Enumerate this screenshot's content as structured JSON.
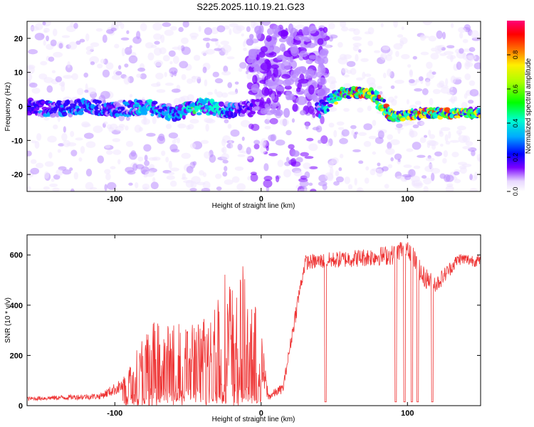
{
  "figure": {
    "title": "S225.2025.110.19.21.G23"
  },
  "chart_data": [
    {
      "type": "heatmap",
      "xlabel": "Height of straight line (km)",
      "ylabel": "Frequency (Hz)",
      "xlim": [
        -160,
        150
      ],
      "ylim": [
        -25,
        25
      ],
      "xticks": [
        -100,
        0,
        100
      ],
      "yticks": [
        -20,
        -10,
        0,
        10,
        20
      ],
      "xtick_labels": [
        "-100",
        "0",
        "100"
      ],
      "ytick_labels": [
        "-20",
        "-10",
        "0",
        "10",
        "20"
      ],
      "colorbar": {
        "label": "Normalized spectral amplitude",
        "range": [
          0,
          1
        ],
        "ticks": [
          0.0,
          0.2,
          0.4,
          0.6,
          0.8
        ],
        "tick_labels": [
          "0.0",
          "0.2",
          "0.4",
          "0.6",
          "0.8"
        ],
        "colormap": "rainbow"
      },
      "ridge": [
        {
          "x": -160,
          "y": 0,
          "a": 0.45
        },
        {
          "x": -140,
          "y": -1,
          "a": 0.5
        },
        {
          "x": -120,
          "y": 0,
          "a": 0.55
        },
        {
          "x": -100,
          "y": -1,
          "a": 0.5
        },
        {
          "x": -80,
          "y": 0,
          "a": 0.6
        },
        {
          "x": -60,
          "y": -2,
          "a": 0.55
        },
        {
          "x": -50,
          "y": -1,
          "a": 0.65
        },
        {
          "x": -40,
          "y": 0,
          "a": 0.65
        },
        {
          "x": -25,
          "y": -1,
          "a": 0.6
        },
        {
          "x": -15,
          "y": -1,
          "a": 0.45
        },
        {
          "x": 0,
          "y": 0,
          "a": 0.3
        },
        {
          "x": 40,
          "y": -1,
          "a": 0.5
        },
        {
          "x": 55,
          "y": 4,
          "a": 0.85
        },
        {
          "x": 75,
          "y": 4,
          "a": 0.85
        },
        {
          "x": 90,
          "y": -3,
          "a": 0.8
        },
        {
          "x": 110,
          "y": -2,
          "a": 0.85
        },
        {
          "x": 130,
          "y": -2,
          "a": 0.85
        },
        {
          "x": 148,
          "y": -2,
          "a": 0.8
        }
      ],
      "grid": false
    },
    {
      "type": "line",
      "xlabel": "Height of straight line (km)",
      "ylabel": "SNR (10 * v/v)",
      "xlim": [
        -160,
        150
      ],
      "ylim": [
        0,
        680
      ],
      "xticks": [
        -100,
        0,
        100
      ],
      "yticks": [
        0,
        200,
        400,
        600
      ],
      "xtick_labels": [
        "-100",
        "0",
        "100"
      ],
      "ytick_labels": [
        "0",
        "200",
        "400",
        "600"
      ],
      "color": "#ee3333",
      "envelope": [
        {
          "x": -160,
          "base": 20,
          "peak": 35
        },
        {
          "x": -110,
          "base": 25,
          "peak": 50
        },
        {
          "x": -95,
          "base": 50,
          "peak": 110
        },
        {
          "x": -85,
          "base": 90,
          "peak": 250
        },
        {
          "x": -75,
          "base": 120,
          "peak": 340
        },
        {
          "x": -60,
          "base": 110,
          "peak": 320
        },
        {
          "x": -40,
          "base": 130,
          "peak": 350
        },
        {
          "x": -25,
          "base": 150,
          "peak": 530
        },
        {
          "x": -10,
          "base": 140,
          "peak": 560
        },
        {
          "x": 0,
          "base": 40,
          "peak": 300
        },
        {
          "x": 5,
          "base": 20,
          "peak": 50
        },
        {
          "x": 15,
          "base": 50,
          "peak": 90
        },
        {
          "x": 25,
          "base": 380,
          "peak": 450
        },
        {
          "x": 30,
          "base": 540,
          "peak": 600
        },
        {
          "x": 60,
          "base": 550,
          "peak": 620
        },
        {
          "x": 90,
          "base": 560,
          "peak": 640
        },
        {
          "x": 100,
          "base": 600,
          "peak": 680
        },
        {
          "x": 110,
          "base": 470,
          "peak": 560
        },
        {
          "x": 120,
          "base": 450,
          "peak": 520
        },
        {
          "x": 135,
          "base": 560,
          "peak": 610
        },
        {
          "x": 150,
          "base": 550,
          "peak": 600
        }
      ],
      "dropouts": [
        44,
        92,
        98,
        103,
        107,
        117
      ],
      "grid": false
    }
  ]
}
